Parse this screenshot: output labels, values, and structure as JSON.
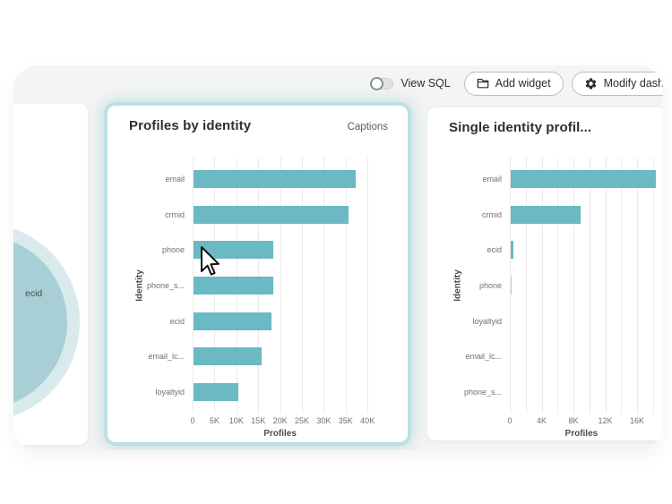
{
  "toolbar": {
    "view_sql_label": "View SQL",
    "view_sql_state": "off",
    "add_widget_label": "Add widget",
    "modify_dash_label": "Modify dash"
  },
  "left_panel": {
    "donut_label": "ecid"
  },
  "colors": {
    "bar_teal": "#6bb9c2",
    "bar_teal_light": "#a9d6db",
    "donut_inner": "#a8cfd5",
    "donut_outer": "#d9eaec",
    "card_glow": "#7dc2ca",
    "backdrop": "#f4f4f5"
  },
  "chart_data": [
    {
      "type": "bar",
      "orientation": "horizontal",
      "title": "Profiles by identity",
      "action_label": "Captions",
      "categories": [
        "email",
        "crmid",
        "phone",
        "phone_s...",
        "ecid",
        "email_lc...",
        "loyaltyid"
      ],
      "values": [
        37000,
        35500,
        18200,
        18200,
        17800,
        15600,
        10200
      ],
      "xlabel": "Profiles",
      "ylabel": "Identity",
      "xlim": [
        0,
        40000
      ],
      "grid": true,
      "grid_step": 5000,
      "label_step": 5000,
      "tick_labels": [
        "0",
        "5K",
        "10K",
        "15K",
        "20K",
        "25K",
        "30K",
        "35K",
        "40K"
      ],
      "bar_color": "#6bb9c2"
    },
    {
      "type": "bar",
      "orientation": "horizontal",
      "title": "Single identity profil...",
      "categories": [
        "email",
        "crmid",
        "ecid",
        "phone",
        "loyaltyid",
        "email_lc...",
        "phone_s..."
      ],
      "values": [
        18200,
        8800,
        300,
        150,
        0,
        0,
        0
      ],
      "xlabel": "Profiles",
      "ylabel": "Identity",
      "xlim": [
        0,
        18000
      ],
      "grid": true,
      "grid_step": 2000,
      "label_step": 4000,
      "tick_labels": [
        "0",
        "4K",
        "8K",
        "12K",
        "16K"
      ],
      "bar_color": "#6bb9c2",
      "bar_colors": [
        "#6bb9c2",
        "#6bb9c2",
        "#6bb9c2",
        "#a9d6db",
        "#6bb9c2",
        "#6bb9c2",
        "#6bb9c2"
      ]
    }
  ]
}
